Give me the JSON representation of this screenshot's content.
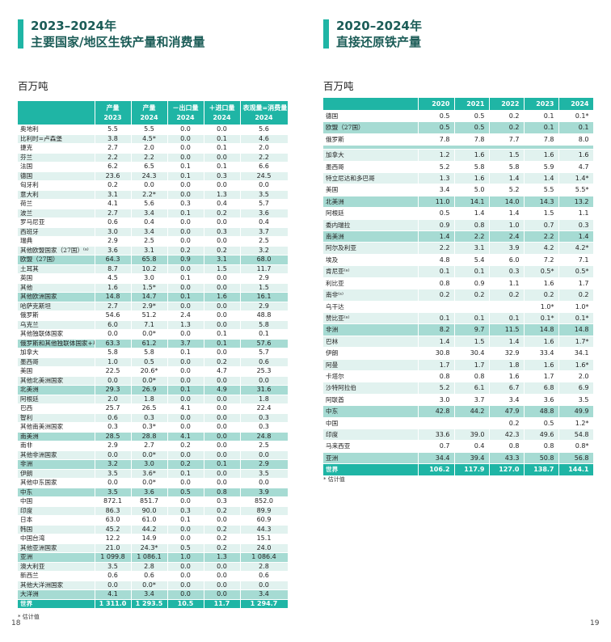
{
  "left": {
    "title_line1": "2023–2024年",
    "title_line2": "主要国家/地区生铁产量和消费量",
    "unit": "百万吨",
    "headers": [
      {
        "l1": "",
        "l2": ""
      },
      {
        "l1": "产量",
        "l2": "2023"
      },
      {
        "l1": "产量",
        "l2": "2024"
      },
      {
        "l1": "－出口量",
        "l2": "2024"
      },
      {
        "l1": "＋进口量",
        "l2": "2024"
      },
      {
        "l1": "表观量=消费量",
        "l2": "2024"
      }
    ],
    "rows": [
      {
        "name": "奥地利",
        "v": [
          "5.5",
          "5.5",
          "0.0",
          "0.0",
          "5.6"
        ]
      },
      {
        "name": "比利时=卢森堡",
        "v": [
          "3.8",
          "4.5*",
          "0.0",
          "0.1",
          "4.6"
        ]
      },
      {
        "name": "捷克",
        "v": [
          "2.7",
          "2.0",
          "0.0",
          "0.1",
          "2.0"
        ]
      },
      {
        "name": "芬兰",
        "v": [
          "2.2",
          "2.2",
          "0.0",
          "0.0",
          "2.2"
        ]
      },
      {
        "name": "法国",
        "v": [
          "6.2",
          "6.5",
          "0.1",
          "0.1",
          "6.6"
        ]
      },
      {
        "name": "德国",
        "v": [
          "23.6",
          "24.3",
          "0.1",
          "0.3",
          "24.5"
        ]
      },
      {
        "name": "匈牙利",
        "v": [
          "0.2",
          "0.0",
          "0.0",
          "0.0",
          "0.0"
        ]
      },
      {
        "name": "意大利",
        "v": [
          "3.1",
          "2.2*",
          "0.0",
          "1.3",
          "3.5"
        ]
      },
      {
        "name": "荷兰",
        "v": [
          "4.1",
          "5.6",
          "0.3",
          "0.4",
          "5.7"
        ]
      },
      {
        "name": "波兰",
        "v": [
          "2.7",
          "3.4",
          "0.1",
          "0.2",
          "3.6"
        ]
      },
      {
        "name": "罗马尼亚",
        "v": [
          "0.6",
          "0.4",
          "0.0",
          "0.0",
          "0.4"
        ]
      },
      {
        "name": "西班牙",
        "v": [
          "3.0",
          "3.4",
          "0.0",
          "0.3",
          "3.7"
        ]
      },
      {
        "name": "瑞典",
        "v": [
          "2.9",
          "2.5",
          "0.0",
          "0.0",
          "2.5"
        ]
      },
      {
        "name": "其他欧盟国家（27国）⁽ᵃ⁾",
        "v": [
          "3.6",
          "3.1",
          "0.2",
          "0.2",
          "3.2"
        ]
      },
      {
        "name": "欧盟（27国）",
        "v": [
          "64.3",
          "65.8",
          "0.9",
          "3.1",
          "68.0"
        ],
        "type": "total"
      },
      {
        "name": "土耳其",
        "v": [
          "8.7",
          "10.2",
          "0.0",
          "1.5",
          "11.7"
        ]
      },
      {
        "name": "英国",
        "v": [
          "4.5",
          "3.0",
          "0.1",
          "0.0",
          "2.9"
        ]
      },
      {
        "name": "其他",
        "v": [
          "1.6",
          "1.5*",
          "0.0",
          "0.0",
          "1.5"
        ]
      },
      {
        "name": "其他欧洲国家",
        "v": [
          "14.8",
          "14.7",
          "0.1",
          "1.6",
          "16.1"
        ],
        "type": "total"
      },
      {
        "name": "哈萨克斯坦",
        "v": [
          "2.7",
          "2.9*",
          "0.0",
          "0.0",
          "2.9"
        ]
      },
      {
        "name": "俄罗斯",
        "v": [
          "54.6",
          "51.2",
          "2.4",
          "0.0",
          "48.8"
        ]
      },
      {
        "name": "乌克兰",
        "v": [
          "6.0",
          "7.1",
          "1.3",
          "0.0",
          "5.8"
        ]
      },
      {
        "name": "其他独联体国家",
        "v": [
          "0.0",
          "0.0*",
          "0.0",
          "0.1",
          "0.1"
        ]
      },
      {
        "name": "俄罗斯和其他独联体国家+乌克兰",
        "v": [
          "63.3",
          "61.2",
          "3.7",
          "0.1",
          "57.6"
        ],
        "type": "total"
      },
      {
        "name": "加拿大",
        "v": [
          "5.8",
          "5.8",
          "0.1",
          "0.0",
          "5.7"
        ]
      },
      {
        "name": "墨西哥",
        "v": [
          "1.0",
          "0.5",
          "0.0",
          "0.2",
          "0.6"
        ]
      },
      {
        "name": "美国",
        "v": [
          "22.5",
          "20.6*",
          "0.0",
          "4.7",
          "25.3"
        ]
      },
      {
        "name": "其他北美洲国家",
        "v": [
          "0.0",
          "0.0*",
          "0.0",
          "0.0",
          "0.0"
        ]
      },
      {
        "name": "北美洲",
        "v": [
          "29.3",
          "26.9",
          "0.1",
          "4.9",
          "31.6"
        ],
        "type": "total"
      },
      {
        "name": "阿根廷",
        "v": [
          "2.0",
          "1.8",
          "0.0",
          "0.0",
          "1.8"
        ]
      },
      {
        "name": "巴西",
        "v": [
          "25.7",
          "26.5",
          "4.1",
          "0.0",
          "22.4"
        ]
      },
      {
        "name": "智利",
        "v": [
          "0.6",
          "0.3",
          "0.0",
          "0.0",
          "0.3"
        ]
      },
      {
        "name": "其他南美洲国家",
        "v": [
          "0.3",
          "0.3*",
          "0.0",
          "0.0",
          "0.3"
        ]
      },
      {
        "name": "南美洲",
        "v": [
          "28.5",
          "28.8",
          "4.1",
          "0.0",
          "24.8"
        ],
        "type": "total"
      },
      {
        "name": "南非",
        "v": [
          "2.9",
          "2.7",
          "0.2",
          "0.0",
          "2.5"
        ]
      },
      {
        "name": "其他非洲国家",
        "v": [
          "0.0",
          "0.0*",
          "0.0",
          "0.0",
          "0.0"
        ]
      },
      {
        "name": "非洲",
        "v": [
          "3.2",
          "3.0",
          "0.2",
          "0.1",
          "2.9"
        ],
        "type": "total"
      },
      {
        "name": "伊朗",
        "v": [
          "3.5",
          "3.6*",
          "0.1",
          "0.0",
          "3.5"
        ]
      },
      {
        "name": "其他中东国家",
        "v": [
          "0.0",
          "0.0*",
          "0.0",
          "0.0",
          "0.0"
        ]
      },
      {
        "name": "中东",
        "v": [
          "3.5",
          "3.6",
          "0.5",
          "0.8",
          "3.9"
        ],
        "type": "total"
      },
      {
        "name": "中国",
        "v": [
          "872.1",
          "851.7",
          "0.0",
          "0.3",
          "852.0"
        ]
      },
      {
        "name": "印度",
        "v": [
          "86.3",
          "90.0",
          "0.3",
          "0.2",
          "89.9"
        ]
      },
      {
        "name": "日本",
        "v": [
          "63.0",
          "61.0",
          "0.1",
          "0.0",
          "60.9"
        ]
      },
      {
        "name": "韩国",
        "v": [
          "45.2",
          "44.2",
          "0.0",
          "0.2",
          "44.3"
        ]
      },
      {
        "name": "中国台湾",
        "v": [
          "12.2",
          "14.9",
          "0.0",
          "0.2",
          "15.1"
        ]
      },
      {
        "name": "其他亚洲国家",
        "v": [
          "21.0",
          "24.3*",
          "0.5",
          "0.2",
          "24.0"
        ]
      },
      {
        "name": "亚洲",
        "v": [
          "1 099.8",
          "1 086.1",
          "1.0",
          "1.3",
          "1 086.4"
        ],
        "type": "total"
      },
      {
        "name": "澳大利亚",
        "v": [
          "3.5",
          "2.8",
          "0.0",
          "0.0",
          "2.8"
        ]
      },
      {
        "name": "新西兰",
        "v": [
          "0.6",
          "0.6",
          "0.0",
          "0.0",
          "0.6"
        ]
      },
      {
        "name": "其他大洋洲国家",
        "v": [
          "0.0",
          "0.0*",
          "0.0",
          "0.0",
          "0.0"
        ]
      },
      {
        "name": "大洋洲",
        "v": [
          "4.1",
          "3.4",
          "0.0",
          "0.0",
          "3.4"
        ],
        "type": "total"
      },
      {
        "name": "世界",
        "v": [
          "1 311.0",
          "1 293.5",
          "10.5",
          "11.7",
          "1 294.7"
        ],
        "type": "world"
      }
    ],
    "footnote": "* 估计值",
    "page_number": "18"
  },
  "right": {
    "title_line1": "2020–2024年",
    "title_line2": "直接还原铁产量",
    "unit": "百万吨",
    "headers": [
      "",
      "2020",
      "2021",
      "2022",
      "2023",
      "2024"
    ],
    "rows": [
      {
        "name": "德国",
        "v": [
          "0.5",
          "0.5",
          "0.2",
          "0.1",
          "0.1*"
        ]
      },
      {
        "name": "欧盟（27国）",
        "v": [
          "0.5",
          "0.5",
          "0.2",
          "0.1",
          "0.1"
        ],
        "type": "total"
      },
      {
        "name": "俄罗斯",
        "v": [
          "7.8",
          "7.8",
          "7.7",
          "7.8",
          "8.0"
        ]
      },
      {
        "type": "sep"
      },
      {
        "name": "加拿大",
        "v": [
          "1.2",
          "1.6",
          "1.5",
          "1.6",
          "1.6"
        ]
      },
      {
        "name": "墨西哥",
        "v": [
          "5.2",
          "5.8",
          "5.8",
          "5.9",
          "4.7"
        ]
      },
      {
        "name": "特立尼达和多巴哥",
        "v": [
          "1.3",
          "1.6",
          "1.4",
          "1.4",
          "1.4*"
        ]
      },
      {
        "name": "美国",
        "v": [
          "3.4",
          "5.0",
          "5.2",
          "5.5",
          "5.5*"
        ]
      },
      {
        "name": "北美洲",
        "v": [
          "11.0",
          "14.1",
          "14.0",
          "14.3",
          "13.2"
        ],
        "type": "total"
      },
      {
        "name": "阿根廷",
        "v": [
          "0.5",
          "1.4",
          "1.4",
          "1.5",
          "1.1"
        ]
      },
      {
        "name": "委内瑞拉",
        "v": [
          "0.9",
          "0.8",
          "1.0",
          "0.7",
          "0.3"
        ]
      },
      {
        "name": "南美洲",
        "v": [
          "1.4",
          "2.2",
          "2.4",
          "2.2",
          "1.4"
        ],
        "type": "total"
      },
      {
        "name": "阿尔及利亚",
        "v": [
          "2.2",
          "3.1",
          "3.9",
          "4.2",
          "4.2*"
        ]
      },
      {
        "name": "埃及",
        "v": [
          "4.8",
          "5.4",
          "6.0",
          "7.2",
          "7.1"
        ]
      },
      {
        "name": "肯尼亚⁽ᵃ⁾",
        "v": [
          "0.1",
          "0.1",
          "0.3",
          "0.5*",
          "0.5*"
        ]
      },
      {
        "name": "利比亚",
        "v": [
          "0.8",
          "0.9",
          "1.1",
          "1.6",
          "1.7"
        ]
      },
      {
        "name": "南非⁽ᵃ⁾",
        "v": [
          "0.2",
          "0.2",
          "0.2",
          "0.2",
          "0.2"
        ]
      },
      {
        "name": "乌干达",
        "v": [
          "",
          "",
          "",
          "1.0*",
          "1.0*"
        ]
      },
      {
        "name": "赞比亚⁽ᵃ⁾",
        "v": [
          "0.1",
          "0.1",
          "0.1",
          "0.1*",
          "0.1*"
        ]
      },
      {
        "name": "非洲",
        "v": [
          "8.2",
          "9.7",
          "11.5",
          "14.8",
          "14.8"
        ],
        "type": "total"
      },
      {
        "name": "巴林",
        "v": [
          "1.4",
          "1.5",
          "1.4",
          "1.6",
          "1.7*"
        ]
      },
      {
        "name": "伊朗",
        "v": [
          "30.8",
          "30.4",
          "32.9",
          "33.4",
          "34.1"
        ]
      },
      {
        "name": "阿曼",
        "v": [
          "1.7",
          "1.7",
          "1.8",
          "1.6",
          "1.6*"
        ]
      },
      {
        "name": "卡塔尔",
        "v": [
          "0.8",
          "0.8",
          "1.6",
          "1.7",
          "2.0"
        ]
      },
      {
        "name": "沙特阿拉伯",
        "v": [
          "5.2",
          "6.1",
          "6.7",
          "6.8",
          "6.9"
        ]
      },
      {
        "name": "阿联酋",
        "v": [
          "3.0",
          "3.7",
          "3.4",
          "3.6",
          "3.5"
        ]
      },
      {
        "name": "中东",
        "v": [
          "42.8",
          "44.2",
          "47.9",
          "48.8",
          "49.9"
        ],
        "type": "total"
      },
      {
        "name": "中国",
        "v": [
          "",
          "",
          "0.2",
          "0.5",
          "1.2*"
        ]
      },
      {
        "name": "印度",
        "v": [
          "33.6",
          "39.0",
          "42.3",
          "49.6",
          "54.8"
        ]
      },
      {
        "name": "马来西亚",
        "v": [
          "0.7",
          "0.4",
          "0.8",
          "0.8",
          "0.8*"
        ]
      },
      {
        "name": "亚洲",
        "v": [
          "34.4",
          "39.4",
          "43.3",
          "50.8",
          "56.8"
        ],
        "type": "total"
      },
      {
        "name": "世界",
        "v": [
          "106.2",
          "117.9",
          "127.0",
          "138.7",
          "144.1"
        ],
        "type": "world"
      }
    ],
    "footnote": "* 估计值",
    "page_number": "19"
  },
  "colors": {
    "accent": "#1fb5a5",
    "subtotal": "#a6dbd3",
    "row_alt": "#e1f2ef",
    "title": "#1b5c57"
  }
}
